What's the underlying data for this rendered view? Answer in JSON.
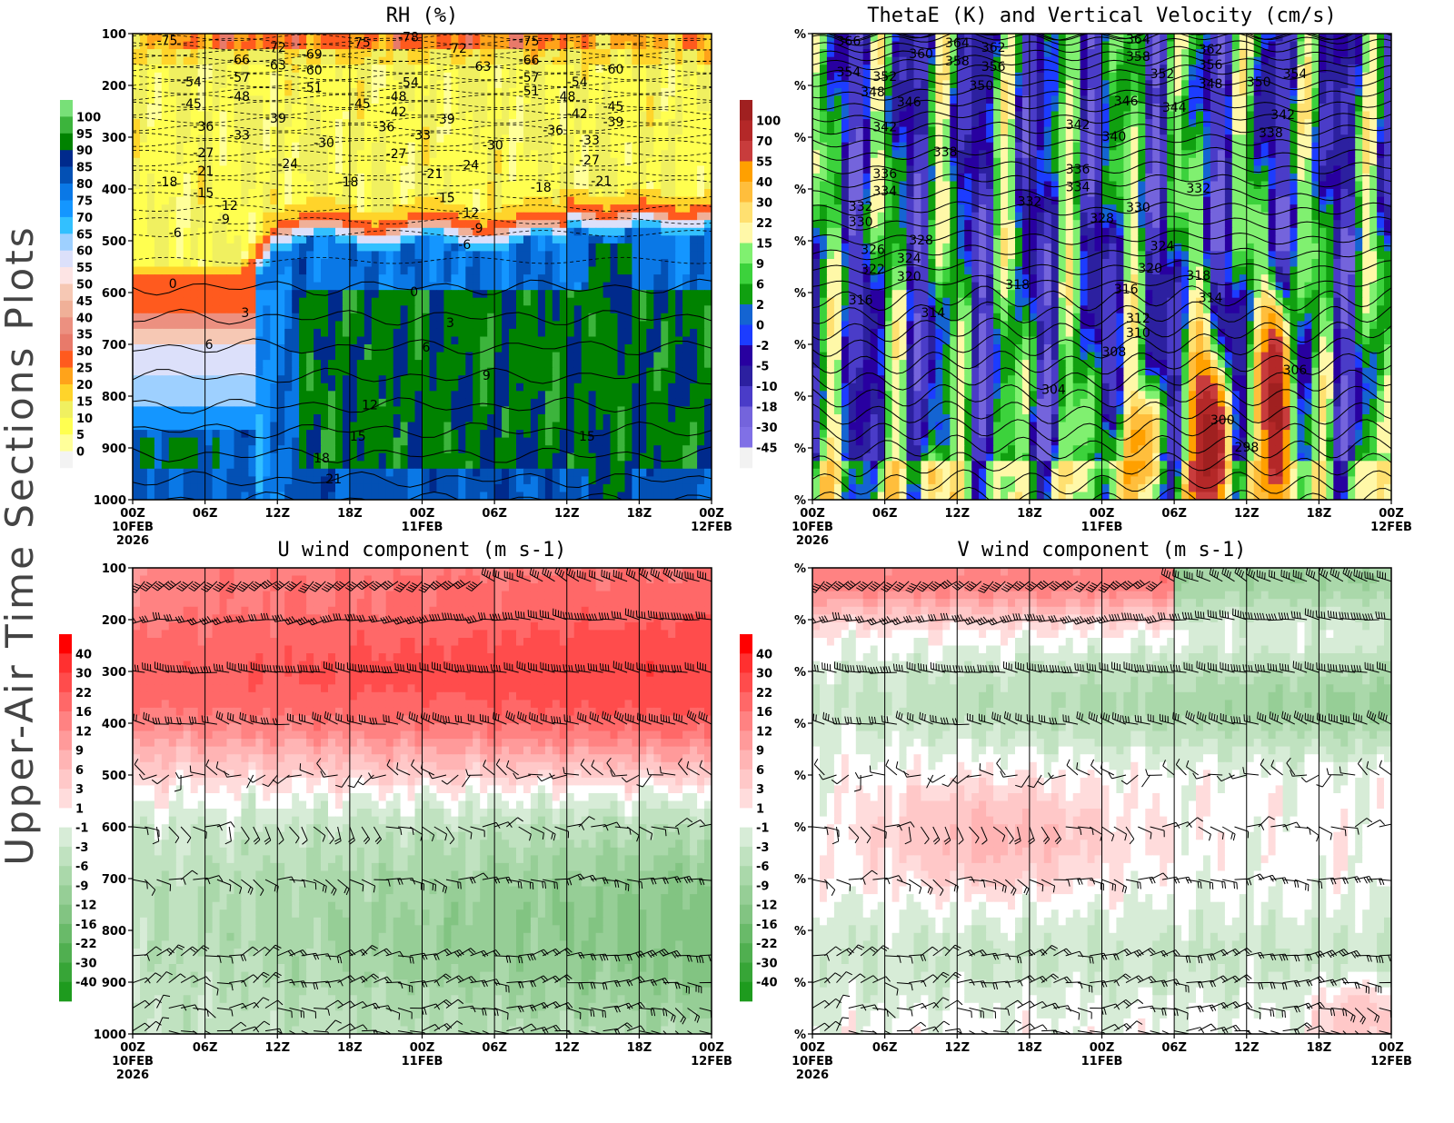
{
  "side_label": "Upper-Air Time Sections Plots",
  "x_axis": {
    "ticks": [
      "00Z",
      "06Z",
      "12Z",
      "18Z",
      "00Z",
      "06Z",
      "12Z",
      "18Z",
      "00Z"
    ],
    "date_labels": [
      {
        "tick": 0,
        "lines": [
          "10FEB",
          "2026"
        ]
      },
      {
        "tick": 4,
        "lines": [
          "11FEB"
        ]
      },
      {
        "tick": 8,
        "lines": [
          "12FEB"
        ]
      }
    ]
  },
  "chart_data": [
    {
      "type": "heatmap",
      "title": "RH (%)",
      "x_range": [
        "10FEB 00Z",
        "12FEB 00Z"
      ],
      "y_ticks": [
        "100",
        "200",
        "300",
        "400",
        "500",
        "600",
        "700",
        "800",
        "900",
        "1000"
      ],
      "y_range": [
        1000,
        100
      ],
      "grid": "vertical lines every 6h",
      "colorbar": {
        "labels": [
          "100",
          "95",
          "90",
          "85",
          "80",
          "75",
          "70",
          "65",
          "60",
          "55",
          "50",
          "45",
          "40",
          "35",
          "30",
          "25",
          "20",
          "15",
          "10",
          "5",
          "0"
        ],
        "colors": [
          "#78e078",
          "#3cb43c",
          "#008200",
          "#002a8c",
          "#0350b4",
          "#0a78e6",
          "#1496ff",
          "#32c0ff",
          "#9ed0ff",
          "#dce0fa",
          "#fde4e4",
          "#f6c8b4",
          "#f0b098",
          "#ec9080",
          "#e87a6a",
          "#ff5a1e",
          "#ffa31a",
          "#ffd42a",
          "#f0f060",
          "#ffff50",
          "#ffff9a",
          "#f3f3f3"
        ]
      },
      "contour_labels": [
        [
          "-75",
          "10FEB 02Z",
          115
        ],
        [
          "-78",
          "10FEB 22Z",
          108
        ],
        [
          "-72",
          "10FEB 11Z",
          128
        ],
        [
          "-69",
          "10FEB 14Z",
          141
        ],
        [
          "-75",
          "10FEB 18Z",
          118
        ],
        [
          "-72",
          "11FEB 02Z",
          130
        ],
        [
          "-75",
          "11FEB 08Z",
          116
        ],
        [
          "-66",
          "10FEB 08Z",
          152
        ],
        [
          "-63",
          "10FEB 11Z",
          162
        ],
        [
          "-60",
          "10FEB 14Z",
          172
        ],
        [
          "-63",
          "11FEB 04Z",
          165
        ],
        [
          "-66",
          "11FEB 08Z",
          153
        ],
        [
          "-60",
          "11FEB 15Z",
          170
        ],
        [
          "-57",
          "10FEB 08Z",
          186
        ],
        [
          "-54",
          "10FEB 04Z",
          195
        ],
        [
          "-51",
          "10FEB 14Z",
          205
        ],
        [
          "-54",
          "10FEB 22Z",
          196
        ],
        [
          "-57",
          "11FEB 08Z",
          186
        ],
        [
          "-51",
          "11FEB 08Z",
          212
        ],
        [
          "-54",
          "11FEB 12Z",
          195
        ],
        [
          "-48",
          "10FEB 08Z",
          223
        ],
        [
          "-48",
          "10FEB 21Z",
          223
        ],
        [
          "-48",
          "11FEB 11Z",
          223
        ],
        [
          "-45",
          "10FEB 04Z",
          237
        ],
        [
          "-45",
          "10FEB 18Z",
          237
        ],
        [
          "-45",
          "11FEB 15Z",
          242
        ],
        [
          "-42",
          "10FEB 21Z",
          253
        ],
        [
          "-42",
          "11FEB 12Z",
          256
        ],
        [
          "-39",
          "10FEB 11Z",
          265
        ],
        [
          "-39",
          "11FEB 01Z",
          267
        ],
        [
          "-39",
          "11FEB 15Z",
          272
        ],
        [
          "-36",
          "10FEB 05Z",
          281
        ],
        [
          "-36",
          "10FEB 20Z",
          282
        ],
        [
          "-36",
          "11FEB 10Z",
          288
        ],
        [
          "-33",
          "10FEB 08Z",
          297
        ],
        [
          "-33",
          "10FEB 23Z",
          297
        ],
        [
          "-33",
          "11FEB 13Z",
          307
        ],
        [
          "-30",
          "10FEB 15Z",
          312
        ],
        [
          "-30",
          "11FEB 05Z",
          317
        ],
        [
          "-27",
          "10FEB 05Z",
          332
        ],
        [
          "-27",
          "10FEB 21Z",
          333
        ],
        [
          "-27",
          "11FEB 13Z",
          346
        ],
        [
          "-24",
          "10FEB 12Z",
          353
        ],
        [
          "-24",
          "11FEB 03Z",
          355
        ],
        [
          "-21",
          "10FEB 05Z",
          367
        ],
        [
          "-21",
          "11FEB 00Z",
          372
        ],
        [
          "-21",
          "11FEB 14Z",
          386
        ],
        [
          "-18",
          "10FEB 02Z",
          388
        ],
        [
          "-18",
          "10FEB 17Z",
          388
        ],
        [
          "-18",
          "11FEB 09Z",
          398
        ],
        [
          "-15",
          "10FEB 05Z",
          409
        ],
        [
          "-15",
          "11FEB 01Z",
          418
        ],
        [
          "-12",
          "10FEB 07Z",
          433
        ],
        [
          "-12",
          "11FEB 03Z",
          447
        ],
        [
          "-9",
          "10FEB 07Z",
          460
        ],
        [
          "-9",
          "11FEB 04Z",
          477
        ],
        [
          "-6",
          "10FEB 03Z",
          486
        ],
        [
          "-6",
          "11FEB 03Z",
          509
        ],
        [
          "0",
          "10FEB 03Z",
          584
        ],
        [
          "0",
          "10FEB 23Z",
          600
        ],
        [
          "3",
          "10FEB 09Z",
          640
        ],
        [
          "3",
          "11FEB 02Z",
          660
        ],
        [
          "6",
          "10FEB 06Z",
          702
        ],
        [
          "6",
          "11FEB 00Z",
          707
        ],
        [
          "9",
          "11FEB 05Z",
          761
        ],
        [
          "12",
          "10FEB 19Z",
          818
        ],
        [
          "15",
          "10FEB 18Z",
          879
        ],
        [
          "15",
          "11FEB 13Z",
          879
        ],
        [
          "18",
          "10FEB 15Z",
          921
        ],
        [
          "21",
          "10FEB 16Z",
          961
        ]
      ]
    },
    {
      "type": "heatmap",
      "title": "ThetaE (K) and Vertical Velocity (cm/s)",
      "x_range": [
        "10FEB 00Z",
        "12FEB 00Z"
      ],
      "y_ticks": [
        "%",
        "%",
        "%",
        "%",
        "%",
        "%",
        "%",
        "%",
        "%",
        "%"
      ],
      "y_range": [
        1000,
        100
      ],
      "grid": "vertical lines every 6h",
      "colorbar": {
        "labels": [
          "100",
          "70",
          "55",
          "40",
          "30",
          "22",
          "15",
          "9",
          "6",
          "2",
          "0",
          "-2",
          "-5",
          "-10",
          "-18",
          "-30",
          "-45"
        ],
        "colors": [
          "#a02020",
          "#b42828",
          "#c83c3c",
          "#ffa000",
          "#ffbe3c",
          "#ffe070",
          "#fff8a8",
          "#80f070",
          "#3cd23c",
          "#10a010",
          "#1464d2",
          "#1c3cff",
          "#2800a0",
          "#2c20a0",
          "#4a3cc8",
          "#7464dc",
          "#8070e6",
          "#f2f2f2"
        ]
      },
      "contour_labels": [
        [
          "366",
          "10FEB 02Z",
          116
        ],
        [
          "360",
          "10FEB 08Z",
          140
        ],
        [
          "364",
          "10FEB 11Z",
          119
        ],
        [
          "362",
          "10FEB 14Z",
          128
        ],
        [
          "358",
          "10FEB 11Z",
          154
        ],
        [
          "356",
          "10FEB 14Z",
          165
        ],
        [
          "354",
          "10FEB 02Z",
          175
        ],
        [
          "352",
          "10FEB 05Z",
          184
        ],
        [
          "350",
          "10FEB 13Z",
          202
        ],
        [
          "348",
          "10FEB 04Z",
          214
        ],
        [
          "346",
          "10FEB 07Z",
          233
        ],
        [
          "342",
          "10FEB 05Z",
          282
        ],
        [
          "338",
          "10FEB 10Z",
          330
        ],
        [
          "336",
          "10FEB 05Z",
          372
        ],
        [
          "334",
          "10FEB 05Z",
          405
        ],
        [
          "332",
          "10FEB 03Z",
          435
        ],
        [
          "330",
          "10FEB 03Z",
          465
        ],
        [
          "328",
          "10FEB 08Z",
          500
        ],
        [
          "326",
          "10FEB 04Z",
          518
        ],
        [
          "324",
          "10FEB 07Z",
          535
        ],
        [
          "322",
          "10FEB 04Z",
          556
        ],
        [
          "320",
          "10FEB 07Z",
          570
        ],
        [
          "316",
          "10FEB 03Z",
          616
        ],
        [
          "314",
          "10FEB 09Z",
          640
        ],
        [
          "318",
          "10FEB 16Z",
          586
        ],
        [
          "332",
          "10FEB 17Z",
          425
        ],
        [
          "346",
          "11FEB 01Z",
          232
        ],
        [
          "342",
          "10FEB 21Z",
          277
        ],
        [
          "340",
          "11FEB 00Z",
          300
        ],
        [
          "336",
          "10FEB 21Z",
          363
        ],
        [
          "334",
          "10FEB 21Z",
          397
        ],
        [
          "328",
          "10FEB 23Z",
          458
        ],
        [
          "330",
          "11FEB 02Z",
          437
        ],
        [
          "316",
          "11FEB 01Z",
          595
        ],
        [
          "312",
          "11FEB 02Z",
          651
        ],
        [
          "310",
          "11FEB 02Z",
          679
        ],
        [
          "308",
          "11FEB 00Z",
          716
        ],
        [
          "304",
          "10FEB 19Z",
          789
        ],
        [
          "364",
          "11FEB 02Z",
          112
        ],
        [
          "358",
          "11FEB 02Z",
          146
        ],
        [
          "352",
          "11FEB 04Z",
          179
        ],
        [
          "362",
          "11FEB 08Z",
          132
        ],
        [
          "356",
          "11FEB 08Z",
          161
        ],
        [
          "348",
          "11FEB 08Z",
          198
        ],
        [
          "350",
          "11FEB 12Z",
          195
        ],
        [
          "354",
          "11FEB 15Z",
          179
        ],
        [
          "344",
          "11FEB 05Z",
          244
        ],
        [
          "342",
          "11FEB 14Z",
          258
        ],
        [
          "338",
          "11FEB 13Z",
          293
        ],
        [
          "332",
          "11FEB 07Z",
          400
        ],
        [
          "324",
          "11FEB 04Z",
          511
        ],
        [
          "320",
          "11FEB 03Z",
          554
        ],
        [
          "318",
          "11FEB 07Z",
          568
        ],
        [
          "314",
          "11FEB 08Z",
          611
        ],
        [
          "306",
          "11FEB 15Z",
          751
        ],
        [
          "300",
          "11FEB 09Z",
          847
        ],
        [
          "298",
          "11FEB 11Z",
          900
        ]
      ]
    },
    {
      "type": "heatmap",
      "title": "U wind component (m s-1)",
      "x_range": [
        "10FEB 00Z",
        "12FEB 00Z"
      ],
      "y_ticks": [
        "100",
        "200",
        "300",
        "400",
        "500",
        "600",
        "700",
        "800",
        "900",
        "1000"
      ],
      "y_range": [
        1000,
        100
      ],
      "grid": "vertical lines every 6h",
      "overlay": "wind barbs",
      "colorbar": {
        "labels": [
          "40",
          "30",
          "22",
          "16",
          "12",
          "9",
          "6",
          "3",
          "1",
          "-1",
          "-3",
          "-6",
          "-9",
          "-12",
          "-16",
          "-22",
          "-30",
          "-40"
        ],
        "colors": [
          "#ff0000",
          "#ff3030",
          "#ff4c4c",
          "#ff6868",
          "#ff8282",
          "#ff9a9a",
          "#ffb4b4",
          "#ffc8c8",
          "#ffdcdc",
          "#ffffff",
          "#d7ecd7",
          "#c0e2c0",
          "#aad8aa",
          "#96ce96",
          "#82c482",
          "#69ba69",
          "#50af50",
          "#37a537",
          "#1e9b1e"
        ]
      }
    },
    {
      "type": "heatmap",
      "title": "V wind component (m s-1)",
      "x_range": [
        "10FEB 00Z",
        "12FEB 00Z"
      ],
      "y_ticks": [
        "%",
        "%",
        "%",
        "%",
        "%",
        "%",
        "%",
        "%",
        "%",
        "%"
      ],
      "y_range": [
        1000,
        100
      ],
      "grid": "vertical lines every 6h",
      "overlay": "wind barbs",
      "colorbar": {
        "labels": [
          "40",
          "30",
          "22",
          "16",
          "12",
          "9",
          "6",
          "3",
          "1",
          "-1",
          "-3",
          "-6",
          "-9",
          "-12",
          "-16",
          "-22",
          "-30",
          "-40"
        ],
        "colors": [
          "#ff0000",
          "#ff3030",
          "#ff4c4c",
          "#ff6868",
          "#ff8282",
          "#ff9a9a",
          "#ffb4b4",
          "#ffc8c8",
          "#ffdcdc",
          "#ffffff",
          "#d7ecd7",
          "#c0e2c0",
          "#aad8aa",
          "#96ce96",
          "#82c482",
          "#69ba69",
          "#50af50",
          "#37a537",
          "#1e9b1e"
        ]
      }
    }
  ]
}
